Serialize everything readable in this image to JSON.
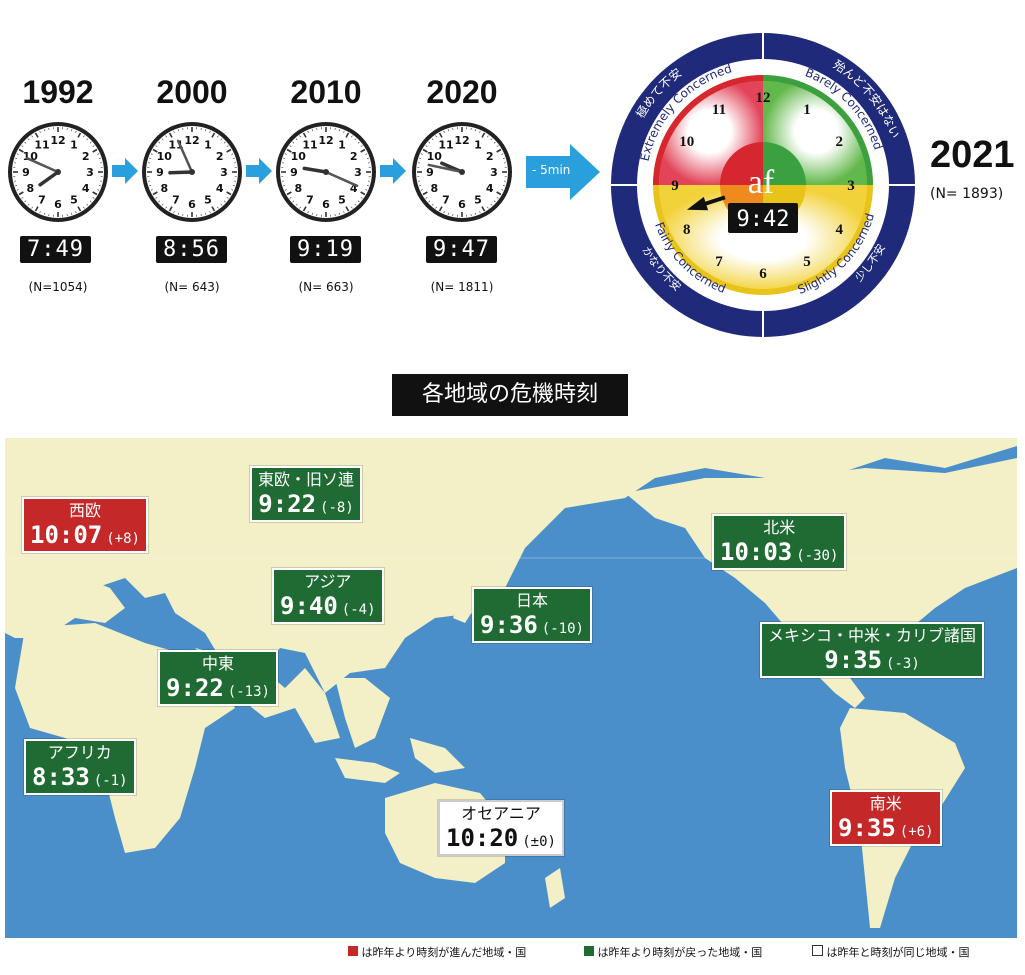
{
  "history": [
    {
      "year": "1992",
      "time": "7:49",
      "n": "(N=1054)",
      "h": 7,
      "m": 49
    },
    {
      "year": "2000",
      "time": "8:56",
      "n": "(N= 643)",
      "h": 8,
      "m": 56
    },
    {
      "year": "2010",
      "time": "9:19",
      "n": "(N= 663)",
      "h": 9,
      "m": 19
    },
    {
      "year": "2020",
      "time": "9:47",
      "n": "(N= 1811)",
      "h": 9,
      "m": 47
    }
  ],
  "change_label": "- 5min",
  "main_clock": {
    "time": "9:42",
    "logo": "af",
    "ring_top_jp_left": "極めて不安",
    "ring_top_en_left": "Extremely Concerned",
    "ring_top_jp_right": "殆んど不安はない",
    "ring_top_en_right": "Barely Concerned",
    "ring_bottom_en_left": "Fairly Concerned",
    "ring_bottom_jp_left": "かなり不安",
    "ring_bottom_en_right": "Slightly Concerned",
    "ring_bottom_jp_right": "少し不安",
    "colors": {
      "red": "#d6262f",
      "green": "#3aa040",
      "yellow": "#e8c41a",
      "orange": "#ef8a1f",
      "navy": "#1f2a7a"
    }
  },
  "year_2021": {
    "year": "2021",
    "n": "(N= 1893)"
  },
  "map_title": "各地域の危機時刻",
  "regions": [
    {
      "name": "西欧",
      "time": "10:07",
      "diff": "(+8)",
      "status": "red"
    },
    {
      "name": "東欧・旧ソ連",
      "time": "9:22",
      "diff": "(-8)",
      "status": "green"
    },
    {
      "name": "アジア",
      "time": "9:40",
      "diff": "(-4)",
      "status": "green"
    },
    {
      "name": "日本",
      "time": "9:36",
      "diff": "(-10)",
      "status": "green"
    },
    {
      "name": "北米",
      "time": "10:03",
      "diff": "(-30)",
      "status": "green"
    },
    {
      "name": "中東",
      "time": "9:22",
      "diff": "(-13)",
      "status": "green"
    },
    {
      "name": "メキシコ・中米・カリブ諸国",
      "time": "9:35",
      "diff": "(-3)",
      "status": "green"
    },
    {
      "name": "アフリカ",
      "time": "8:33",
      "diff": "(-1)",
      "status": "green"
    },
    {
      "name": "オセアニア",
      "time": "10:20",
      "diff": "(±0)",
      "status": "white"
    },
    {
      "name": "南米",
      "time": "9:35",
      "diff": "(+6)",
      "status": "red"
    }
  ],
  "legend": [
    {
      "text": "は昨年より時刻が進んだ地域・国",
      "color": "#c42828"
    },
    {
      "text": "は昨年より時刻が戻った地域・国",
      "color": "#1f6b33"
    },
    {
      "text": "は昨年と時刻が同じ地域・国",
      "color": "#ffffff"
    }
  ]
}
